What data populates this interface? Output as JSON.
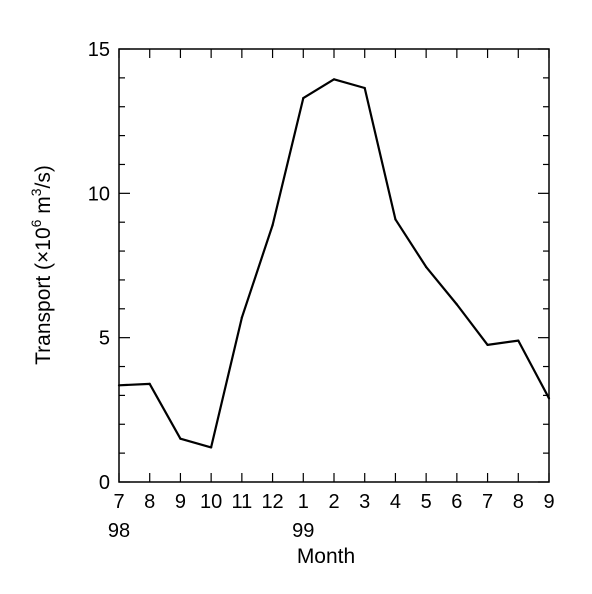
{
  "chart_data": {
    "type": "line",
    "title": "",
    "xlabel": "Month",
    "ylabel": "Transport (×10⁶ m³/s)",
    "ylabel_parts": {
      "prefix": "Transport (×10",
      "exp1": "6",
      "mid": " m",
      "exp2": "3",
      "suffix": "/s)"
    },
    "categories": [
      "7",
      "8",
      "9",
      "10",
      "11",
      "12",
      "1",
      "2",
      "3",
      "4",
      "5",
      "6",
      "7",
      "8",
      "9"
    ],
    "year_labels": [
      {
        "index": 0,
        "text": "98"
      },
      {
        "index": 6,
        "text": "99"
      }
    ],
    "series": [
      {
        "values": [
          3.35,
          3.4,
          1.5,
          1.2,
          5.7,
          8.9,
          13.3,
          13.95,
          13.65,
          9.1,
          7.45,
          6.15,
          4.75,
          4.9,
          2.9
        ]
      }
    ],
    "ylim": [
      0,
      15
    ],
    "yticks": [
      0,
      5,
      10,
      15
    ],
    "legend": "none",
    "grid": false,
    "colors": {
      "line": "#000000",
      "axes": "#000000"
    }
  }
}
